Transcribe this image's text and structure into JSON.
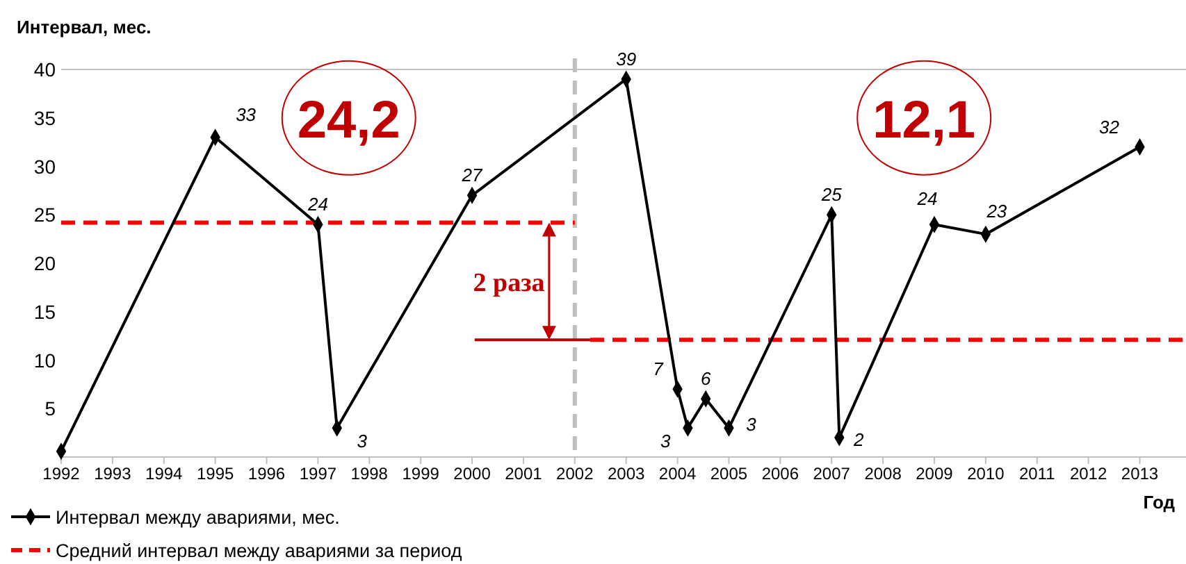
{
  "chart_data": {
    "type": "line",
    "ylabel": "Интервал, мес.",
    "xlabel": "Год",
    "xlim": [
      1992,
      2013.9
    ],
    "xticks": [
      1992,
      1993,
      1994,
      1995,
      1996,
      1997,
      1998,
      1999,
      2000,
      2001,
      2002,
      2003,
      2004,
      2005,
      2006,
      2007,
      2008,
      2009,
      2010,
      2011,
      2012,
      2013
    ],
    "ylim": [
      0,
      40
    ],
    "yticks": [
      5,
      10,
      15,
      20,
      25,
      30,
      35,
      40
    ],
    "grid": false,
    "legend": "bottom left",
    "series": [
      {
        "name": "Интервал между авариями, мес.",
        "color": "#000000",
        "marker": "diamond",
        "line_style": "solid",
        "x": [
          1992,
          1995,
          1997,
          1997.37,
          2000,
          2003,
          2004,
          2004.2,
          2004.55,
          2005,
          2007,
          2007.15,
          2009,
          2010,
          2013
        ],
        "values": [
          0.6,
          33,
          24,
          3,
          27,
          39,
          7,
          3,
          6,
          3,
          25,
          2,
          24,
          23,
          32
        ],
        "value_labels": [
          null,
          "33",
          "24",
          "3",
          "27",
          "39",
          "7",
          "3",
          "6",
          "3",
          "25",
          "2",
          "24",
          "23",
          "32"
        ]
      },
      {
        "name": "Средний интервал между авариями за период",
        "color": "#ff0000",
        "marker": "none",
        "line_style": "dashed",
        "x": [
          1992,
          2002
        ],
        "values": [
          24.2,
          24.2
        ]
      },
      {
        "color": "#ff0000",
        "marker": "none",
        "line_style": "dashed",
        "x": [
          2002.3,
          2013.9
        ],
        "values": [
          12.1,
          12.1
        ]
      }
    ],
    "ref_lines": [
      {
        "axis": "x",
        "value": 2002,
        "color": "#bfbfbf",
        "line_style": "dashed"
      }
    ],
    "annotations": [
      "24,2",
      "12,1",
      "2 раза"
    ]
  }
}
